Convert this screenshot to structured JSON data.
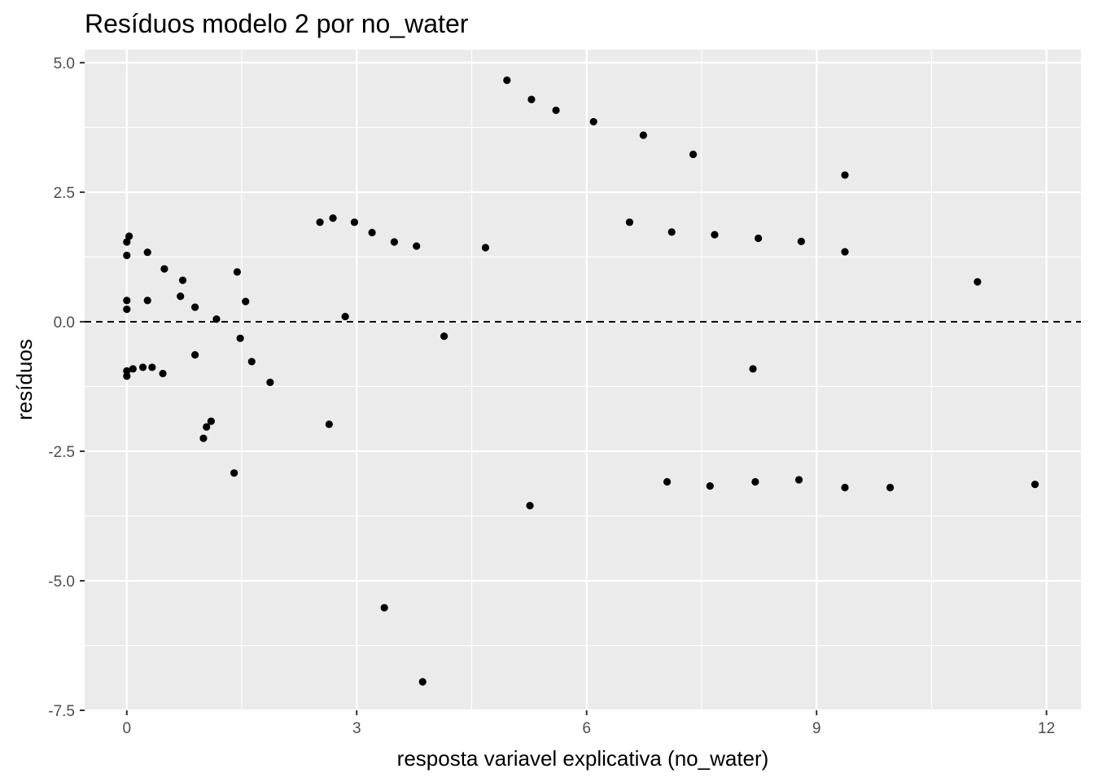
{
  "chart_data": {
    "type": "scatter",
    "title": "Resíduos modelo 2 por no_water",
    "xlabel": "resposta variavel explicativa (no_water)",
    "ylabel": "resíduos",
    "xlim": [
      -0.55,
      12.45
    ],
    "ylim": [
      -7.5,
      5.25
    ],
    "x_ticks": [
      0,
      3,
      6,
      9,
      12
    ],
    "x_tick_labels": [
      "0",
      "3",
      "6",
      "9",
      "12"
    ],
    "y_ticks": [
      5.0,
      2.5,
      0.0,
      -2.5,
      -5.0,
      -7.5
    ],
    "y_tick_labels": [
      "5.0",
      "2.5",
      "0.0",
      "-2.5",
      "-5.0",
      "-7.5"
    ],
    "grid": true,
    "reference_line": {
      "y": 0,
      "style": "dashed"
    },
    "point_color": "#000000",
    "panel_background": "#ebebeb",
    "grid_color": "#ffffff",
    "points": [
      {
        "x": 0.0,
        "y": 1.54
      },
      {
        "x": 0.03,
        "y": 1.65
      },
      {
        "x": 0.0,
        "y": 1.28
      },
      {
        "x": 0.0,
        "y": 0.41
      },
      {
        "x": 0.0,
        "y": 0.24
      },
      {
        "x": 0.0,
        "y": -0.95
      },
      {
        "x": 0.0,
        "y": -1.05
      },
      {
        "x": 0.08,
        "y": -0.91
      },
      {
        "x": 0.21,
        "y": -0.88
      },
      {
        "x": 0.33,
        "y": -0.88
      },
      {
        "x": 0.47,
        "y": -1.0
      },
      {
        "x": 0.27,
        "y": 1.34
      },
      {
        "x": 0.27,
        "y": 0.41
      },
      {
        "x": 0.49,
        "y": 1.02
      },
      {
        "x": 0.7,
        "y": 0.49
      },
      {
        "x": 0.73,
        "y": 0.8
      },
      {
        "x": 0.89,
        "y": 0.28
      },
      {
        "x": 0.89,
        "y": -0.64
      },
      {
        "x": 1.0,
        "y": -2.25
      },
      {
        "x": 1.04,
        "y": -2.03
      },
      {
        "x": 1.1,
        "y": -1.92
      },
      {
        "x": 1.17,
        "y": 0.05
      },
      {
        "x": 1.4,
        "y": -2.92
      },
      {
        "x": 1.44,
        "y": 0.96
      },
      {
        "x": 1.48,
        "y": -0.32
      },
      {
        "x": 1.55,
        "y": 0.39
      },
      {
        "x": 1.63,
        "y": -0.77
      },
      {
        "x": 1.87,
        "y": -1.17
      },
      {
        "x": 2.52,
        "y": 1.92
      },
      {
        "x": 2.64,
        "y": -1.98
      },
      {
        "x": 2.69,
        "y": 2.0
      },
      {
        "x": 2.85,
        "y": 0.1
      },
      {
        "x": 2.97,
        "y": 1.92
      },
      {
        "x": 3.2,
        "y": 1.72
      },
      {
        "x": 3.36,
        "y": -5.52
      },
      {
        "x": 3.49,
        "y": 1.54
      },
      {
        "x": 3.78,
        "y": 1.46
      },
      {
        "x": 3.86,
        "y": -6.95
      },
      {
        "x": 4.14,
        "y": -0.28
      },
      {
        "x": 4.68,
        "y": 1.43
      },
      {
        "x": 4.96,
        "y": 4.66
      },
      {
        "x": 5.26,
        "y": -3.55
      },
      {
        "x": 5.28,
        "y": 4.29
      },
      {
        "x": 5.6,
        "y": 4.08
      },
      {
        "x": 6.09,
        "y": 3.86
      },
      {
        "x": 6.56,
        "y": 1.92
      },
      {
        "x": 6.74,
        "y": 3.6
      },
      {
        "x": 7.05,
        "y": -3.09
      },
      {
        "x": 7.11,
        "y": 1.73
      },
      {
        "x": 7.39,
        "y": 3.23
      },
      {
        "x": 7.61,
        "y": -3.17
      },
      {
        "x": 7.67,
        "y": 1.68
      },
      {
        "x": 8.17,
        "y": -0.91
      },
      {
        "x": 8.2,
        "y": -3.09
      },
      {
        "x": 8.24,
        "y": 1.61
      },
      {
        "x": 8.77,
        "y": -3.05
      },
      {
        "x": 8.8,
        "y": 1.55
      },
      {
        "x": 9.37,
        "y": 2.83
      },
      {
        "x": 9.37,
        "y": 1.35
      },
      {
        "x": 9.37,
        "y": -3.2
      },
      {
        "x": 9.96,
        "y": -3.2
      },
      {
        "x": 11.1,
        "y": 0.77
      },
      {
        "x": 11.85,
        "y": -3.14
      }
    ]
  }
}
